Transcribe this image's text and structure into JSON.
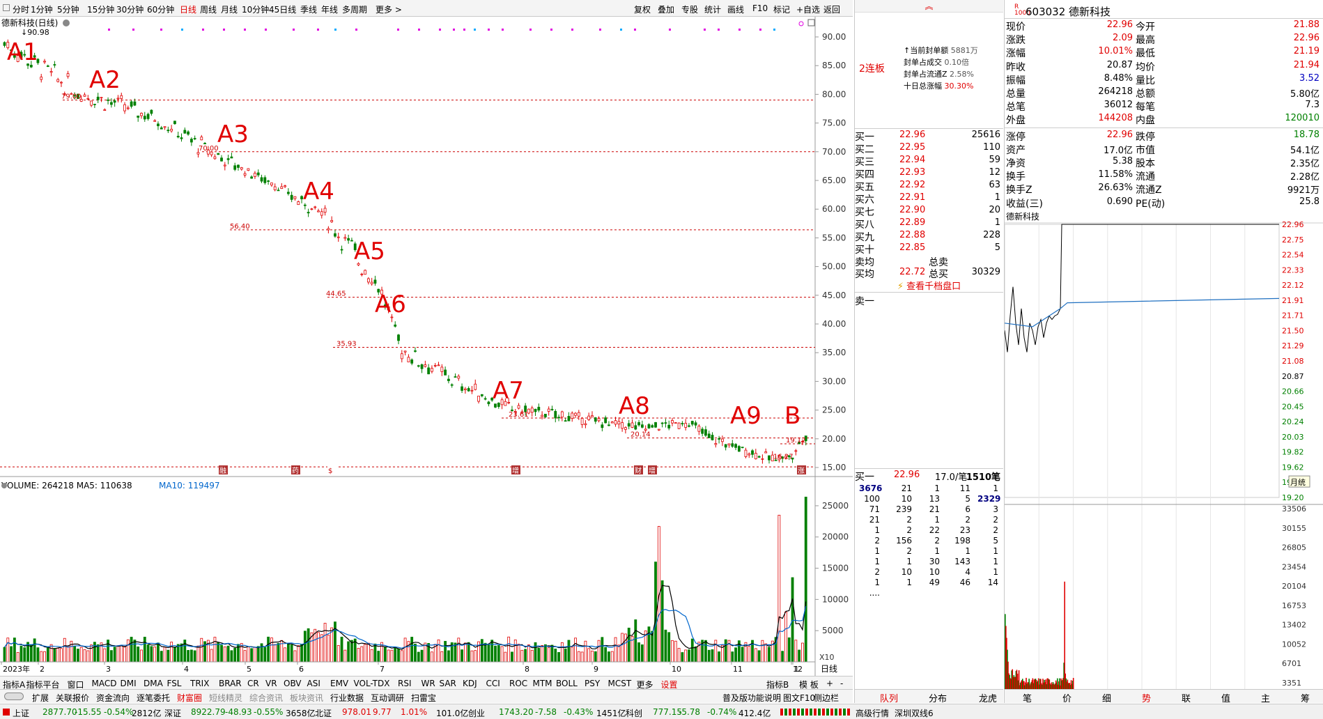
{
  "toolbar": {
    "periods": [
      "分时",
      "1分钟",
      "5分钟",
      "15分钟",
      "30分钟",
      "60分钟",
      "日线",
      "周线",
      "月线",
      "10分钟",
      "45日线",
      "季线",
      "年线",
      "多周期",
      "更多 >"
    ],
    "active_period": "日线",
    "right_buttons": [
      "复权",
      "叠加",
      "专股",
      "统计",
      "画线",
      "F10",
      "标记",
      "+自选",
      "返回"
    ]
  },
  "chart": {
    "title": "德新科技(日线)",
    "high_label": "90.98",
    "y_ticks": [
      "90.00",
      "85.00",
      "80.00",
      "75.00",
      "70.00",
      "65.00",
      "60.00",
      "55.00",
      "50.00",
      "45.00",
      "40.00",
      "35.00",
      "30.00",
      "25.00",
      "20.00",
      "15.00"
    ],
    "price_labels": [
      "79.00",
      "70.00",
      "56.40",
      "44.65",
      "35.93",
      "23.61",
      "20.14",
      "19.12",
      "16.27"
    ],
    "annotations": [
      "A1",
      "A2",
      "A3",
      "A4",
      "A5",
      "A6",
      "A7",
      "A8",
      "A9",
      "B"
    ],
    "x_labels": [
      "2023年",
      "2",
      "3",
      "4",
      "5",
      "6",
      "7",
      "8",
      "9",
      "10",
      "11",
      "12",
      "1"
    ],
    "event_markers": [
      "融",
      "药",
      "$",
      "增",
      "财",
      "增",
      "涨"
    ]
  },
  "volume": {
    "label": "VOLUME: 264218  MA5: 110638  ",
    "ma10": "MA10: 119497",
    "ticks": [
      "25000",
      "20000",
      "15000",
      "10000",
      "5000"
    ],
    "factor": "X10",
    "period_tag": "日线"
  },
  "indicator_tabs": [
    "指标A",
    "指标平台",
    "窗口",
    "MACD",
    "DMI",
    "DMA",
    "FSL",
    "TRIX",
    "BRAR",
    "CR",
    "VR",
    "OBV",
    "ASI",
    "EMV",
    "VOL-TDX",
    "RSI",
    "WR",
    "SAR",
    "KDJ",
    "CCI",
    "ROC",
    "MTM",
    "BOLL",
    "PSY",
    "MCST",
    "更多",
    "设置"
  ],
  "indicator_right": [
    "指标B",
    "模 板",
    "+",
    "-"
  ],
  "sub_tabs": [
    "扩展",
    "关联报价",
    "资金流向",
    "逐笔委托",
    "财富圈",
    "短线精灵",
    "综合资讯",
    "板块资讯",
    "行业数据",
    "互动调研",
    "扫雷宝"
  ],
  "sub_right": [
    "普及版功能说明",
    "图文F10",
    "侧边栏"
  ],
  "seal": {
    "limit_label": "2连板",
    "rows": [
      {
        "k": "↑当前封单额",
        "v": "5881万"
      },
      {
        "k": "封单占成交",
        "v": "0.10倍"
      },
      {
        "k": "封单占流通Z",
        "v": "2.58%"
      },
      {
        "k": "十日总涨幅",
        "v": "30.30%"
      }
    ]
  },
  "bids": [
    {
      "label": "买一",
      "price": "22.96",
      "vol": "25616"
    },
    {
      "label": "买二",
      "price": "22.95",
      "vol": "110"
    },
    {
      "label": "买三",
      "price": "22.94",
      "vol": "59"
    },
    {
      "label": "买四",
      "price": "22.93",
      "vol": "12"
    },
    {
      "label": "买五",
      "price": "22.92",
      "vol": "63"
    },
    {
      "label": "买六",
      "price": "22.91",
      "vol": "1"
    },
    {
      "label": "买七",
      "price": "22.90",
      "vol": "20"
    },
    {
      "label": "买八",
      "price": "22.89",
      "vol": "1"
    },
    {
      "label": "买九",
      "price": "22.88",
      "vol": "228"
    },
    {
      "label": "买十",
      "price": "22.85",
      "vol": "5"
    }
  ],
  "avg": {
    "sell_avg": "卖均",
    "total_sell": "总卖",
    "buy_avg": "买均",
    "buy_avg_price": "22.72",
    "total_buy": "总买",
    "total_buy_val": "30329",
    "view_depth": "查看千档盘口"
  },
  "ask": {
    "label": "卖一"
  },
  "queue": {
    "label": "买一",
    "price": "22.96",
    "per": "17.0/笔",
    "count": "1510笔",
    "rows": [
      [
        "3676",
        "21",
        "1",
        "11",
        "1"
      ],
      [
        "100",
        "10",
        "13",
        "5",
        "2329"
      ],
      [
        "71",
        "239",
        "21",
        "6",
        "3"
      ],
      [
        "21",
        "2",
        "1",
        "2",
        "2"
      ],
      [
        "1",
        "2",
        "22",
        "23",
        "2"
      ],
      [
        "2",
        "156",
        "2",
        "198",
        "5"
      ],
      [
        "1",
        "2",
        "1",
        "1",
        "1"
      ],
      [
        "1",
        "1",
        "30",
        "143",
        "1"
      ],
      [
        "2",
        "10",
        "10",
        "4",
        "1"
      ],
      [
        "1",
        "1",
        "49",
        "46",
        "14"
      ],
      [
        "....",
        "",
        "",
        "",
        ""
      ]
    ]
  },
  "quote": {
    "code": "603032",
    "name": "德新科技",
    "badge": "R",
    "badge_sub": "1000",
    "left": [
      {
        "k": "现价",
        "v": "22.96",
        "c": "red"
      },
      {
        "k": "涨跌",
        "v": "2.09",
        "c": "red"
      },
      {
        "k": "涨幅",
        "v": "10.01%",
        "c": "red"
      },
      {
        "k": "昨收",
        "v": "20.87",
        "c": "blk"
      },
      {
        "k": "振幅",
        "v": "8.48%",
        "c": "blk"
      },
      {
        "k": "总量",
        "v": "264218",
        "c": "blk"
      },
      {
        "k": "总笔",
        "v": "36012",
        "c": "blk"
      },
      {
        "k": "外盘",
        "v": "144208",
        "c": "red"
      },
      {
        "k": "涨停",
        "v": "22.96",
        "c": "red"
      },
      {
        "k": "资产",
        "v": "17.0亿",
        "c": "blk"
      },
      {
        "k": "净资",
        "v": "5.38",
        "c": "blk"
      },
      {
        "k": "换手",
        "v": "11.58%",
        "c": "blk"
      },
      {
        "k": "换手Z",
        "v": "26.63%",
        "c": "blk"
      },
      {
        "k": "收益(三)",
        "v": "0.690",
        "c": "blk"
      }
    ],
    "right": [
      {
        "k": "今开",
        "v": "21.88",
        "c": "red"
      },
      {
        "k": "最高",
        "v": "22.96",
        "c": "red"
      },
      {
        "k": "最低",
        "v": "21.19",
        "c": "red"
      },
      {
        "k": "均价",
        "v": "21.94",
        "c": "red"
      },
      {
        "k": "量比",
        "v": "3.52",
        "c": "blu"
      },
      {
        "k": "总额",
        "v": "5.80亿",
        "c": "blk"
      },
      {
        "k": "每笔",
        "v": "7.3",
        "c": "blk"
      },
      {
        "k": "内盘",
        "v": "120010",
        "c": "grn"
      },
      {
        "k": "跌停",
        "v": "18.78",
        "c": "grn"
      },
      {
        "k": "市值",
        "v": "54.1亿",
        "c": "blk"
      },
      {
        "k": "股本",
        "v": "2.35亿",
        "c": "blk"
      },
      {
        "k": "流通",
        "v": "2.28亿",
        "c": "blk"
      },
      {
        "k": "流通Z",
        "v": "9921万",
        "c": "blk"
      },
      {
        "k": "PE(动)",
        "v": "25.8",
        "c": "blk"
      }
    ]
  },
  "intraday": {
    "title": "德新科技",
    "price_ticks": [
      "22.96",
      "22.75",
      "22.54",
      "22.33",
      "22.12",
      "21.91",
      "21.71",
      "21.50",
      "21.29",
      "21.08",
      "20.87",
      "20.66",
      "20.45",
      "20.24",
      "20.03",
      "19.82",
      "19.62",
      "19.41",
      "19.20"
    ],
    "vol_ticks": [
      "33506",
      "30155",
      "26805",
      "23454",
      "20104",
      "16753",
      "13402",
      "10052",
      "6701",
      "3351"
    ],
    "tooltip": "月统"
  },
  "right_tabs": [
    "笔",
    "价",
    "细",
    "势",
    "联",
    "值",
    "主",
    "筹"
  ],
  "mid_tabs": [
    "队列",
    "分布",
    "龙虎"
  ],
  "status": {
    "items": [
      {
        "t": "上证",
        "c": "blk"
      },
      {
        "t": "2877.70",
        "c": "grn"
      },
      {
        "t": "-15.55",
        "c": "grn"
      },
      {
        "t": "-0.54%",
        "c": "grn"
      },
      {
        "t": "2812亿",
        "c": "blk"
      },
      {
        "t": "深证",
        "c": "blk"
      },
      {
        "t": "8922.79",
        "c": "grn"
      },
      {
        "t": "-48.93",
        "c": "grn"
      },
      {
        "t": "-0.55%",
        "c": "grn"
      },
      {
        "t": "3658亿",
        "c": "blk"
      },
      {
        "t": "北证",
        "c": "blk"
      },
      {
        "t": "978.01",
        "c": "red"
      },
      {
        "t": "9.77",
        "c": "red"
      },
      {
        "t": "1.01%",
        "c": "red"
      },
      {
        "t": "101.0亿",
        "c": "blk"
      },
      {
        "t": "创业",
        "c": "blk"
      },
      {
        "t": "1743.20",
        "c": "grn"
      },
      {
        "t": "-7.58",
        "c": "grn"
      },
      {
        "t": "-0.43%",
        "c": "grn"
      },
      {
        "t": "1451亿",
        "c": "blk"
      },
      {
        "t": "科创",
        "c": "blk"
      },
      {
        "t": "777.15",
        "c": "grn"
      },
      {
        "t": "-5.78",
        "c": "grn"
      },
      {
        "t": "-0.74%",
        "c": "grn"
      },
      {
        "t": "412.4亿",
        "c": "blk"
      }
    ],
    "right": [
      "高级行情",
      "深圳双线6"
    ]
  },
  "colors": {
    "up": "#e00000",
    "down": "#008000",
    "ma_blue": "#0066cc",
    "ma_black": "#000000",
    "annot": "#e00000"
  }
}
